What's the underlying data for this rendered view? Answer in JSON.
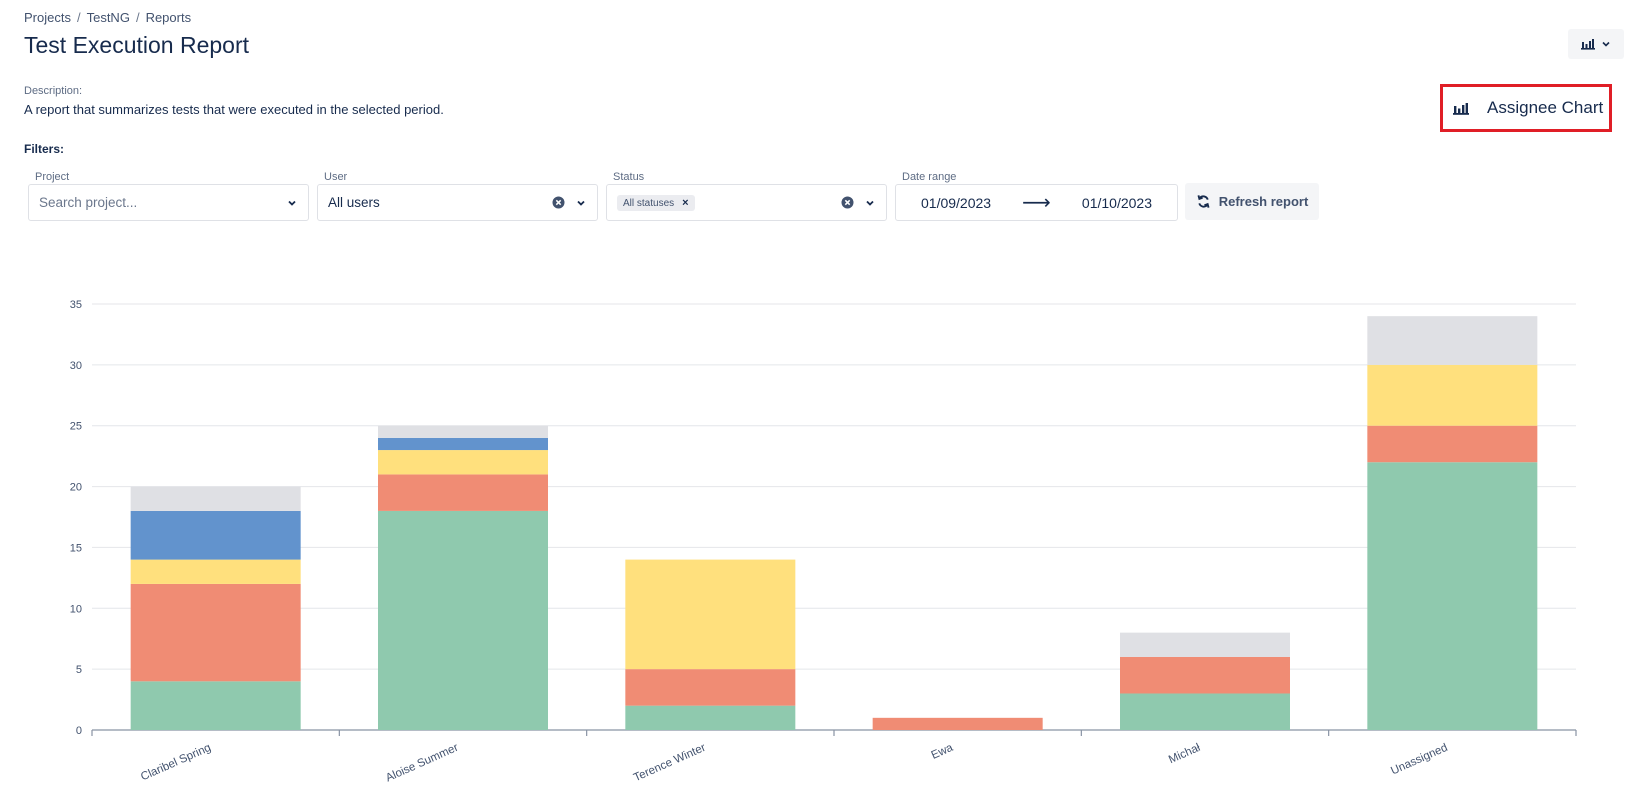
{
  "breadcrumb": [
    "Projects",
    "TestNG",
    "Reports"
  ],
  "breadcrumb_sep": "/",
  "page_title": "Test Execution Report",
  "description": {
    "label": "Description:",
    "text": "A report that summarizes tests that were executed in the selected period."
  },
  "chart_selector": {
    "icon": "bar-chart-icon",
    "label": "Assignee Chart"
  },
  "filters": {
    "label": "Filters:",
    "project": {
      "label": "Project",
      "placeholder": "Search project..."
    },
    "user": {
      "label": "User",
      "value": "All users"
    },
    "status": {
      "label": "Status",
      "tag": "All statuses"
    },
    "date_range": {
      "label": "Date range",
      "from": "01/09/2023",
      "to": "01/10/2023",
      "arrow": "⟶"
    },
    "refresh_label": "Refresh report"
  },
  "chart_data": {
    "type": "bar",
    "stacked": true,
    "categories": [
      "Claribel Spring",
      "Aloise Summer",
      "Terence Winter",
      "Ewa",
      "Michał",
      "Unassigned"
    ],
    "ylim": [
      0,
      35
    ],
    "yticks": [
      0,
      5,
      10,
      15,
      20,
      25,
      30,
      35
    ],
    "grid": true,
    "series": [
      {
        "color": "#8fc9ae",
        "values": [
          4,
          18,
          2,
          0,
          3,
          22
        ]
      },
      {
        "color": "#f08c74",
        "values": [
          8,
          3,
          3,
          1,
          3,
          3
        ]
      },
      {
        "color": "#ffe07d",
        "values": [
          2,
          2,
          9,
          0,
          0,
          5
        ]
      },
      {
        "color": "#6293cd",
        "values": [
          4,
          1,
          0,
          0,
          0,
          0
        ]
      },
      {
        "color": "#dfe0e4",
        "values": [
          2,
          1,
          0,
          0,
          2,
          4
        ]
      }
    ]
  }
}
